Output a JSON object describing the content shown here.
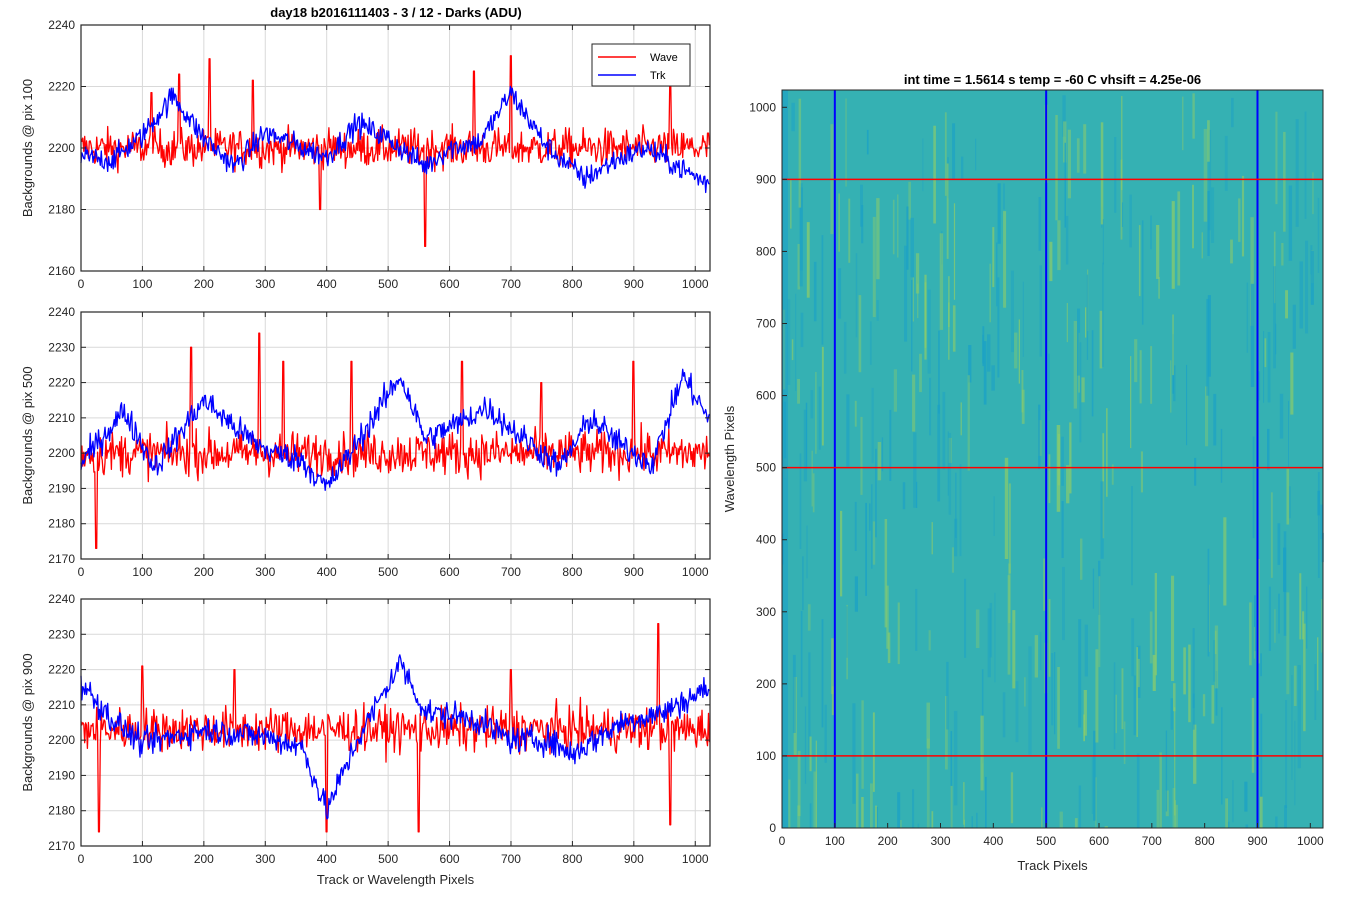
{
  "figure_title": "day18 b2016111403 - 3 / 12 - Darks (ADU)",
  "colors": {
    "wave": "#ff0000",
    "trk": "#0000ff",
    "grid": "#d9d9d9"
  },
  "legend": {
    "entries": [
      "Wave",
      "Trk"
    ],
    "placement": "top-right"
  },
  "chart_data": [
    {
      "type": "line",
      "ylabel": "Backgrounds @ pix 100",
      "xlabel": "",
      "xlim": [
        0,
        1024
      ],
      "ylim": [
        2160,
        2240
      ],
      "xticks": [
        "0",
        "100",
        "200",
        "300",
        "400",
        "500",
        "600",
        "700",
        "800",
        "900",
        "1000"
      ],
      "yticks": [
        "2160",
        "2180",
        "2200",
        "2220",
        "2240"
      ],
      "grid": true,
      "legend": true,
      "series": [
        {
          "name": "Wave",
          "color": "#ff0000",
          "mean": 2200,
          "noise": 8,
          "spikes": [
            [
              115,
              2218
            ],
            [
              160,
              2224
            ],
            [
              210,
              2229
            ],
            [
              280,
              2222
            ],
            [
              390,
              2180
            ],
            [
              560,
              2168
            ],
            [
              640,
              2225
            ],
            [
              700,
              2230
            ],
            [
              960,
              2222
            ]
          ]
        },
        {
          "name": "Trk",
          "color": "#0000ff",
          "mean": 2200,
          "noise": 5,
          "anchors": [
            [
              0,
              2197
            ],
            [
              50,
              2196
            ],
            [
              100,
              2204
            ],
            [
              150,
              2217
            ],
            [
              200,
              2203
            ],
            [
              250,
              2194
            ],
            [
              300,
              2205
            ],
            [
              350,
              2201
            ],
            [
              400,
              2197
            ],
            [
              450,
              2208
            ],
            [
              500,
              2203
            ],
            [
              560,
              2194
            ],
            [
              600,
              2200
            ],
            [
              650,
              2202
            ],
            [
              700,
              2218
            ],
            [
              760,
              2200
            ],
            [
              820,
              2190
            ],
            [
              870,
              2196
            ],
            [
              920,
              2200
            ],
            [
              980,
              2193
            ],
            [
              1024,
              2188
            ]
          ]
        }
      ]
    },
    {
      "type": "line",
      "ylabel": "Backgrounds @ pix 500",
      "xlabel": "",
      "xlim": [
        0,
        1024
      ],
      "ylim": [
        2170,
        2240
      ],
      "xticks": [
        "0",
        "100",
        "200",
        "300",
        "400",
        "500",
        "600",
        "700",
        "800",
        "900",
        "1000"
      ],
      "yticks": [
        "2170",
        "2180",
        "2190",
        "2200",
        "2210",
        "2220",
        "2230",
        "2240"
      ],
      "grid": true,
      "legend": false,
      "series": [
        {
          "name": "Wave",
          "color": "#ff0000",
          "mean": 2200,
          "noise": 8,
          "spikes": [
            [
              25,
              2173
            ],
            [
              180,
              2230
            ],
            [
              290,
              2234
            ],
            [
              330,
              2226
            ],
            [
              440,
              2226
            ],
            [
              620,
              2226
            ],
            [
              750,
              2220
            ],
            [
              900,
              2226
            ]
          ]
        },
        {
          "name": "Trk",
          "color": "#0000ff",
          "mean": 2203,
          "noise": 5,
          "anchors": [
            [
              0,
              2197
            ],
            [
              70,
              2212
            ],
            [
              120,
              2196
            ],
            [
              200,
              2215
            ],
            [
              260,
              2206
            ],
            [
              300,
              2201
            ],
            [
              360,
              2198
            ],
            [
              400,
              2190
            ],
            [
              450,
              2203
            ],
            [
              520,
              2222
            ],
            [
              560,
              2204
            ],
            [
              620,
              2209
            ],
            [
              660,
              2213
            ],
            [
              700,
              2207
            ],
            [
              780,
              2196
            ],
            [
              830,
              2210
            ],
            [
              880,
              2202
            ],
            [
              930,
              2197
            ],
            [
              980,
              2222
            ],
            [
              1024,
              2209
            ]
          ]
        }
      ]
    },
    {
      "type": "line",
      "ylabel": "Backgrounds @ pix 900",
      "xlabel": "Track or Wavelength Pixels",
      "xlim": [
        0,
        1024
      ],
      "ylim": [
        2170,
        2240
      ],
      "xticks": [
        "0",
        "100",
        "200",
        "300",
        "400",
        "500",
        "600",
        "700",
        "800",
        "900",
        "1000"
      ],
      "yticks": [
        "2170",
        "2180",
        "2190",
        "2200",
        "2210",
        "2220",
        "2230",
        "2240"
      ],
      "grid": true,
      "legend": false,
      "series": [
        {
          "name": "Wave",
          "color": "#ff0000",
          "mean": 2203,
          "noise": 8,
          "spikes": [
            [
              30,
              2174
            ],
            [
              100,
              2221
            ],
            [
              250,
              2220
            ],
            [
              400,
              2174
            ],
            [
              550,
              2174
            ],
            [
              700,
              2220
            ],
            [
              940,
              2233
            ],
            [
              960,
              2176
            ]
          ]
        },
        {
          "name": "Trk",
          "color": "#0000ff",
          "mean": 2204,
          "noise": 5,
          "anchors": [
            [
              0,
              2216
            ],
            [
              50,
              2206
            ],
            [
              100,
              2199
            ],
            [
              200,
              2203
            ],
            [
              300,
              2201
            ],
            [
              360,
              2198
            ],
            [
              400,
              2180
            ],
            [
              450,
              2200
            ],
            [
              520,
              2222
            ],
            [
              560,
              2208
            ],
            [
              640,
              2206
            ],
            [
              700,
              2200
            ],
            [
              760,
              2200
            ],
            [
              800,
              2196
            ],
            [
              880,
              2205
            ],
            [
              950,
              2208
            ],
            [
              1024,
              2215
            ]
          ]
        }
      ]
    },
    {
      "type": "heatmap",
      "title": "int time = 1.5614 s    temp = -60 C    vhsift = 4.25e-06",
      "xlabel": "Track Pixels",
      "ylabel": "Wavelength Pixels",
      "xlim": [
        0,
        1024
      ],
      "ylim": [
        0,
        1024
      ],
      "xticks": [
        "0",
        "100",
        "200",
        "300",
        "400",
        "500",
        "600",
        "700",
        "800",
        "900",
        "1000"
      ],
      "yticks": [
        "0",
        "100",
        "200",
        "300",
        "400",
        "500",
        "600",
        "700",
        "800",
        "900",
        "1000"
      ],
      "colormap": [
        "#1aa0c8",
        "#35b1b3",
        "#8ccc6a"
      ],
      "vertical_lines": {
        "x": [
          100,
          500,
          900
        ],
        "color": "#0000ff"
      },
      "horizontal_lines": {
        "y": [
          100,
          500,
          900
        ],
        "color": "#ff0000"
      }
    }
  ]
}
